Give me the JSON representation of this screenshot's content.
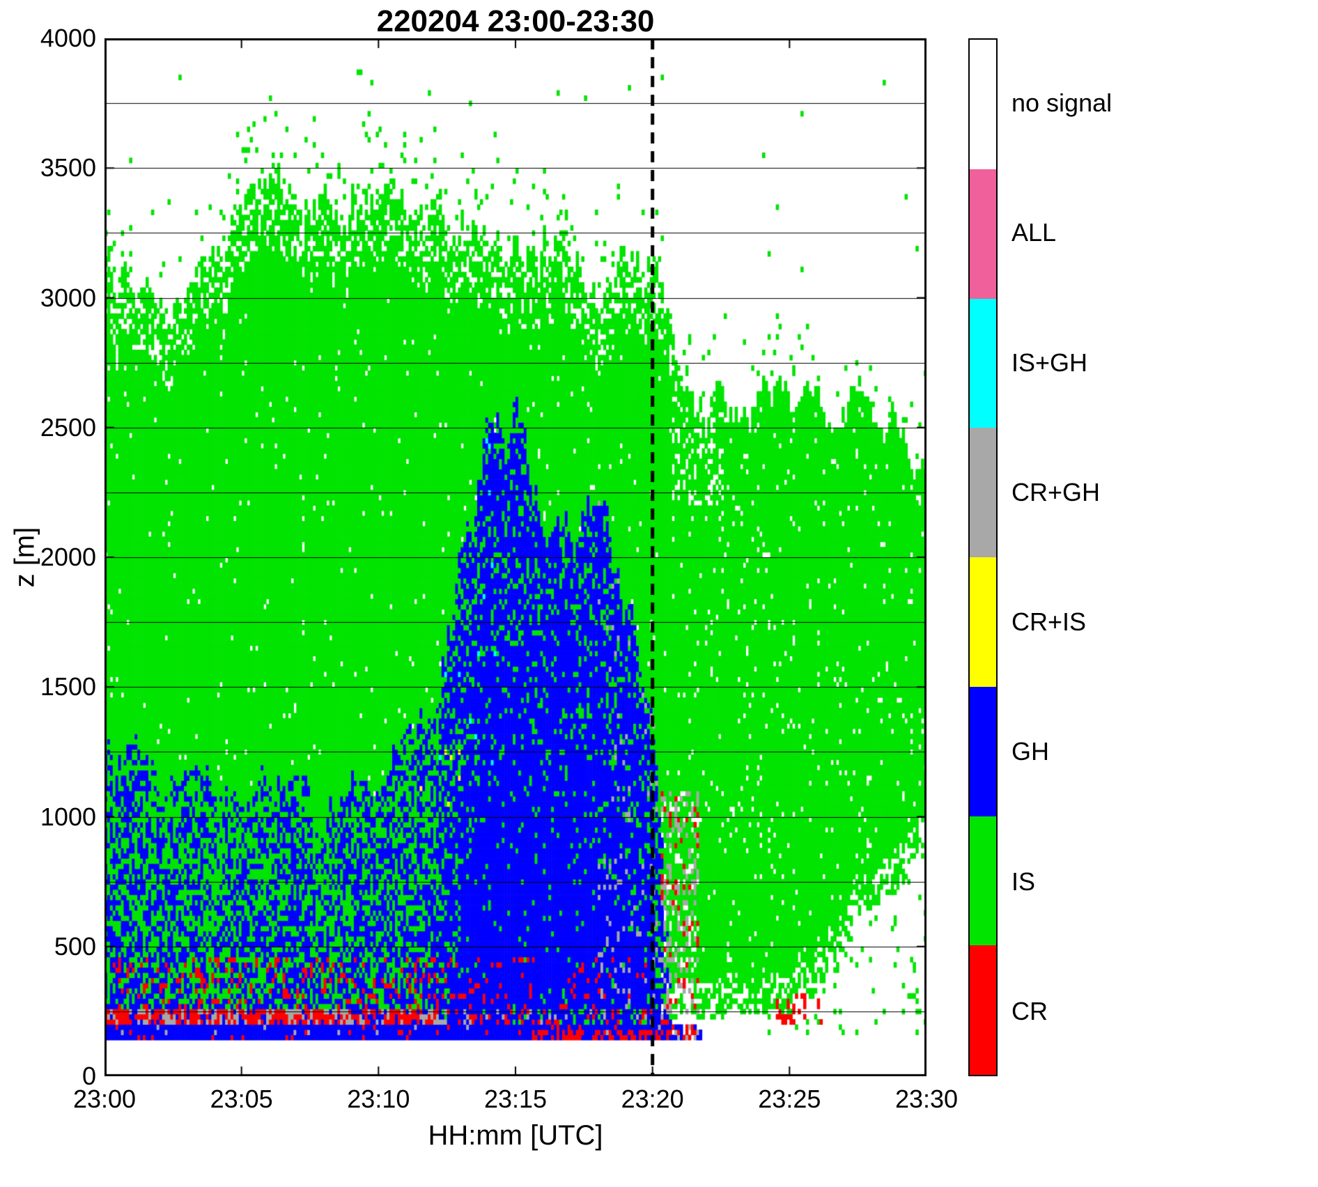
{
  "title": "220204 23:00-23:30",
  "axes": {
    "xlabel": "HH:mm [UTC]",
    "ylabel": "z [m]",
    "yticks": [
      0,
      500,
      1000,
      1500,
      2000,
      2500,
      3000,
      3500,
      4000
    ],
    "xticks": [
      "23:00",
      "23:05",
      "23:10",
      "23:15",
      "23:20",
      "23:25",
      "23:30"
    ],
    "ylim": [
      0,
      4000
    ],
    "xlim_minutes": [
      0,
      30
    ],
    "grid_spacing_m": 250
  },
  "legend": {
    "entries": [
      {
        "label": "no signal",
        "color": "#ffffff"
      },
      {
        "label": "ALL",
        "color": "#f0609a"
      },
      {
        "label": "IS+GH",
        "color": "#00ffff"
      },
      {
        "label": "CR+GH",
        "color": "#a8a8a8"
      },
      {
        "label": "CR+IS",
        "color": "#ffff00"
      },
      {
        "label": "GH",
        "color": "#0000ff"
      },
      {
        "label": "IS",
        "color": "#00e400"
      },
      {
        "label": "CR",
        "color": "#ff0000"
      }
    ]
  },
  "class_colors": {
    "w": "#ffffff",
    "g": "#00e400",
    "b": "#0000ff",
    "r": "#ff0000",
    "k": "#a8a8a8",
    "c": "#00ffff",
    "y": "#ffff00",
    "p": "#f0609a"
  },
  "chart_data": {
    "type": "heatmap",
    "title": "220204 23:00-23:30",
    "xlabel": "HH:mm [UTC]",
    "ylabel": "z [m]",
    "x_unit": "minutes after 23:00 UTC",
    "y_unit": "m",
    "classes": [
      "CR",
      "IS",
      "GH",
      "CR+IS",
      "CR+GH",
      "IS+GH",
      "ALL",
      "no signal"
    ],
    "dashed_line_minute": 20,
    "x_minutes": [
      0,
      1,
      2,
      3,
      4,
      5,
      6,
      7,
      8,
      9,
      10,
      11,
      12,
      13,
      14,
      15,
      16,
      17,
      18,
      19,
      20,
      21,
      22,
      23,
      24,
      25,
      26,
      27,
      28,
      29
    ],
    "profiles": {
      "cloud_top_m": [
        3150,
        3050,
        2950,
        3000,
        3100,
        3300,
        3450,
        3400,
        3350,
        3400,
        3350,
        3300,
        3300,
        3250,
        3200,
        3100,
        3200,
        3250,
        3100,
        3300,
        3200,
        2800,
        2600,
        2550,
        2600,
        2550,
        2600,
        2600,
        2550,
        2500
      ],
      "gh_top_m": [
        1300,
        1250,
        1100,
        1200,
        1150,
        1100,
        1200,
        1100,
        1000,
        1200,
        1100,
        1200,
        1300,
        1900,
        2400,
        2500,
        2300,
        2250,
        2100,
        1700,
        1500,
        0,
        0,
        0,
        0,
        0,
        0,
        0,
        0,
        0
      ],
      "gh_density": [
        0.55,
        0.55,
        0.5,
        0.55,
        0.5,
        0.5,
        0.55,
        0.55,
        0.5,
        0.55,
        0.55,
        0.6,
        0.65,
        0.8,
        0.92,
        0.93,
        0.93,
        0.93,
        0.92,
        0.9,
        0.88,
        0,
        0,
        0,
        0,
        0,
        0,
        0,
        0,
        0
      ],
      "echo_base_m": [
        150,
        150,
        150,
        150,
        150,
        150,
        150,
        150,
        150,
        150,
        150,
        150,
        150,
        150,
        150,
        150,
        150,
        150,
        150,
        150,
        150,
        250,
        230,
        230,
        250,
        260,
        350,
        500,
        650,
        800
      ]
    },
    "features": {
      "bottom_white_below_m": 150,
      "blue_strip": {
        "t": [
          0,
          20.7
        ],
        "z": [
          150,
          200
        ]
      },
      "bottom_red_underlay": {
        "t": [
          15.5,
          20.6
        ],
        "z": [
          150,
          180
        ],
        "p": 0.5
      },
      "mixed_band": {
        "z": [
          200,
          270
        ],
        "t_heavy": [
          0,
          12.3
        ],
        "t_blue": [
          12.3,
          20.6
        ]
      },
      "red_speckle_low": {
        "t": [
          0,
          20.6
        ],
        "z": [
          270,
          460
        ],
        "p_early": 0.14,
        "p_late": 0.08
      },
      "strip_decay": {
        "t": [
          20.7,
          21.8
        ]
      },
      "gray_transition": {
        "t": [
          20.3,
          21.7
        ],
        "z": [
          230,
          1100
        ],
        "p_gray": 0.22,
        "p_red": 0.08,
        "p_white": 0.12
      },
      "right_red_speckle": {
        "t": [
          24.5,
          26.2
        ],
        "z": [
          200,
          330
        ],
        "p": 0.22
      },
      "cyan_speckle": {
        "t": [
          12,
          14.5
        ],
        "z": [
          1200,
          2500
        ],
        "p": 0.012
      },
      "yellow_speckle": {
        "t": [
          11,
          13
        ],
        "z": [
          1000,
          1400
        ],
        "p": 0.012
      },
      "noise_ceiling_m": 3900,
      "top_ragged_amp_m": 180,
      "top_white_mix_band_m": 260,
      "top_white_mix_p": 0.32,
      "internal_white_p_early": 0.015,
      "internal_white_p_late": 0.04,
      "late_extra_white": {
        "t": [
          20.8,
          22.6
        ],
        "z_above": 2200,
        "p": 0.25
      },
      "base_ragged_amp_m": 140,
      "below_base_speckle": {
        "t": [
          24,
          30
        ],
        "p": 0.05
      }
    }
  }
}
